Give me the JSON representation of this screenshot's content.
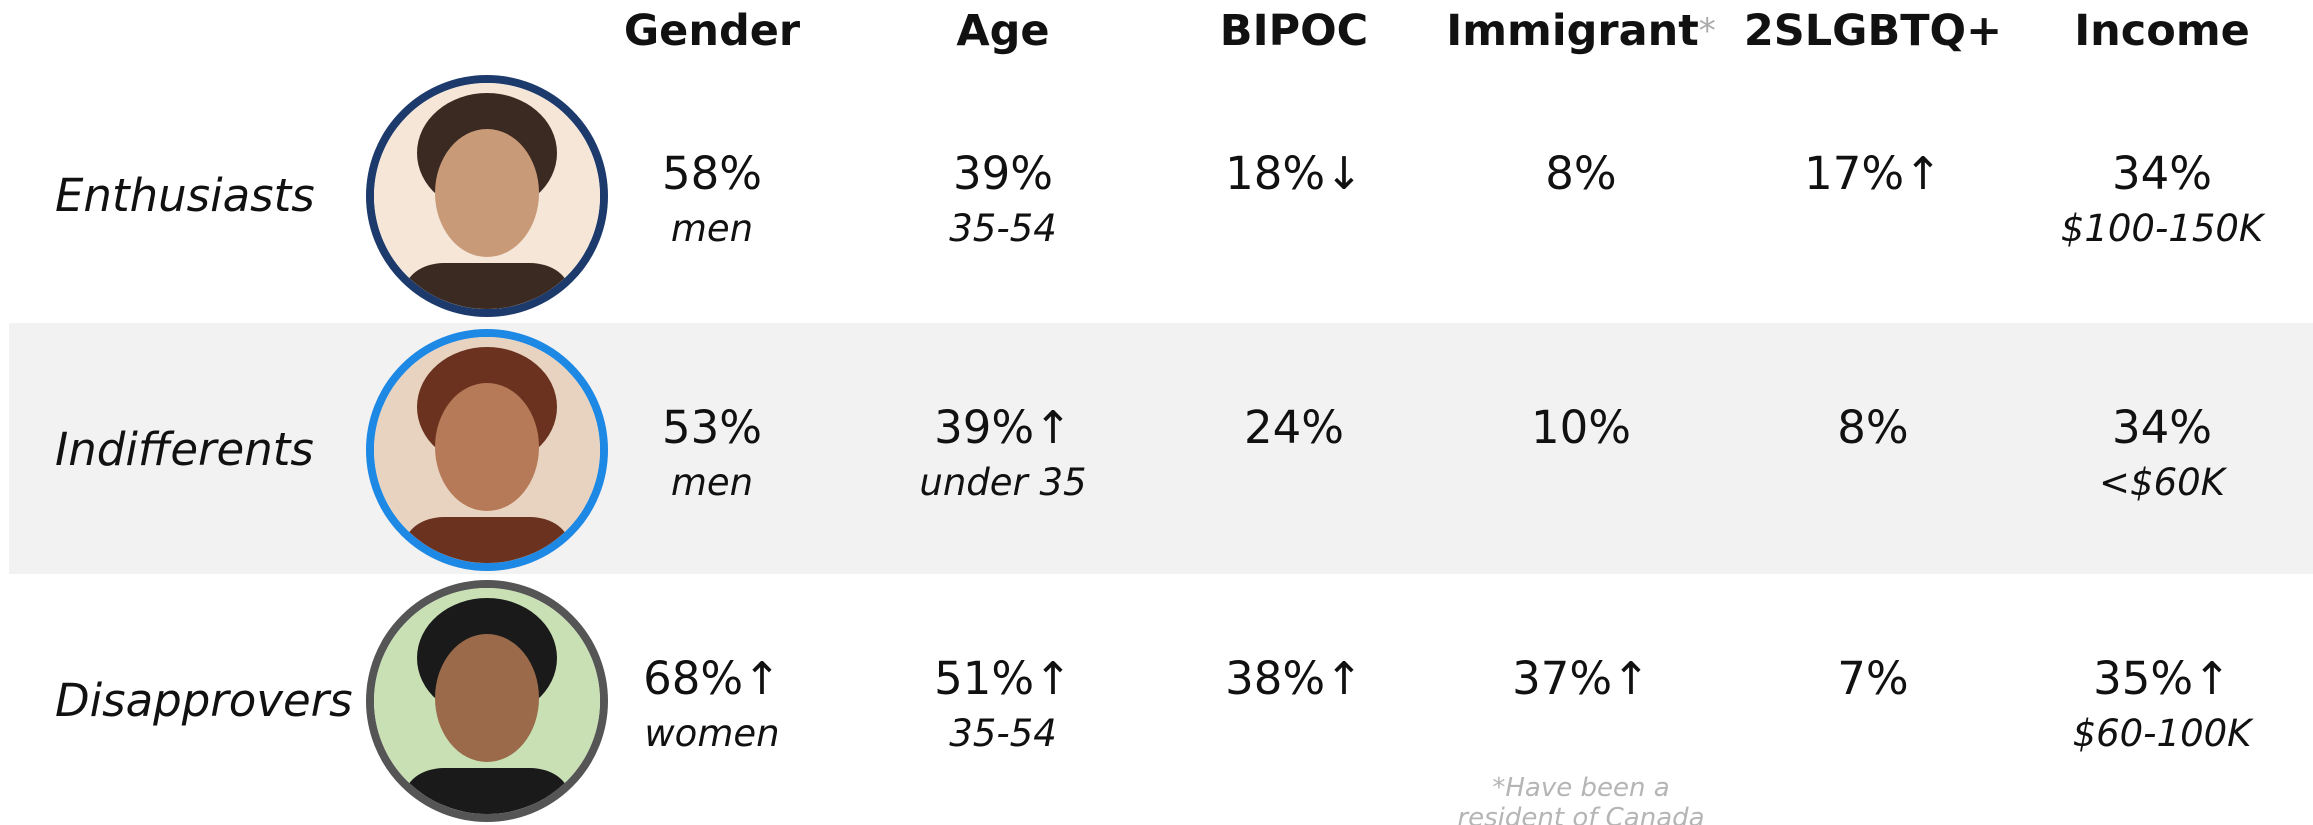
{
  "headers": [
    {
      "label": "Gender"
    },
    {
      "label": "Age"
    },
    {
      "label": "BIPOC"
    },
    {
      "label": "Immigrant",
      "marker": "*"
    },
    {
      "label": "2SLGBTQ+"
    },
    {
      "label": "Income"
    }
  ],
  "rows": [
    {
      "label": "Enthusiasts",
      "cells": [
        {
          "value": "58%",
          "detail": "men"
        },
        {
          "value": "39%",
          "detail": "35-54"
        },
        {
          "value": "18%↓"
        },
        {
          "value": "8%"
        },
        {
          "value": "17%↑"
        },
        {
          "value": "34%",
          "detail": "$100-150K"
        }
      ]
    },
    {
      "label": "Indifferents",
      "cells": [
        {
          "value": "53%",
          "detail": "men"
        },
        {
          "value": "39%↑",
          "detail": "under 35"
        },
        {
          "value": "24%"
        },
        {
          "value": "10%"
        },
        {
          "value": "8%"
        },
        {
          "value": "34%",
          "detail": "<$60K"
        }
      ]
    },
    {
      "label": "Disapprovers",
      "cells": [
        {
          "value": "68%↑",
          "detail": "women"
        },
        {
          "value": "51%↑",
          "detail": "35-54"
        },
        {
          "value": "38%↑"
        },
        {
          "value": "37%↑"
        },
        {
          "value": "7%"
        },
        {
          "value": "35%↑",
          "detail": "$60-100K"
        }
      ]
    }
  ],
  "footnote": {
    "lines": [
      "*Have been a",
      "resident of Canada"
    ]
  }
}
